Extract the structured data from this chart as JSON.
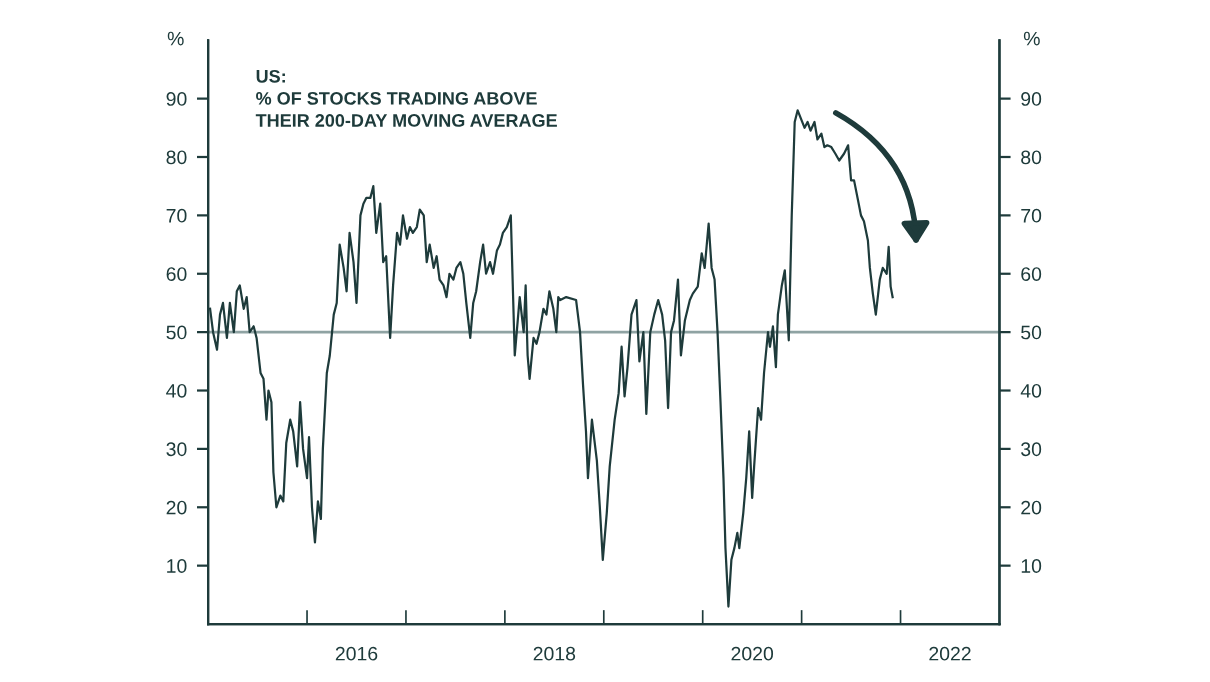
{
  "chart_data": {
    "type": "line",
    "title": "US:\n% OF STOCKS TRADING ABOVE\nTHEIR 200-DAY MOVING AVERAGE",
    "ylabel": "%",
    "y2label": "%",
    "xlim": [
      2015,
      2023
    ],
    "xticks": [
      {
        "value": 2016,
        "label": null
      },
      {
        "value": 2016.5,
        "label": "2016"
      },
      {
        "value": 2017,
        "label": null
      },
      {
        "value": 2018,
        "label": null
      },
      {
        "value": 2018.5,
        "label": "2018"
      },
      {
        "value": 2019,
        "label": null
      },
      {
        "value": 2020,
        "label": null
      },
      {
        "value": 2020.5,
        "label": "2020"
      },
      {
        "value": 2021,
        "label": null
      },
      {
        "value": 2022,
        "label": null
      },
      {
        "value": 2022.5,
        "label": "2022"
      }
    ],
    "ylim": [
      0,
      100
    ],
    "yticks": [
      10,
      20,
      30,
      40,
      50,
      60,
      70,
      80,
      90
    ],
    "y2lim": [
      0,
      100
    ],
    "y2ticks": [
      10,
      20,
      30,
      40,
      50,
      60,
      70,
      80,
      90
    ],
    "grid": false,
    "legend": false,
    "marker": "none",
    "line_style": "solid",
    "ref_lines": [
      {
        "axis": "y",
        "value": 50,
        "label": null,
        "color": "#8fa3a3",
        "line_style": "solid"
      }
    ],
    "series": [
      {
        "color": "#1e3b3b",
        "x": [
          2015.02,
          2015.05,
          2015.09,
          2015.12,
          2015.15,
          2015.19,
          2015.22,
          2015.26,
          2015.29,
          2015.32,
          2015.36,
          2015.39,
          2015.42,
          2015.46,
          2015.49,
          2015.53,
          2015.56,
          2015.59,
          2015.61,
          2015.64,
          2015.66,
          2015.69,
          2015.73,
          2015.76,
          2015.79,
          2015.83,
          2015.86,
          2015.9,
          2015.93,
          2015.96,
          2016.0,
          2016.02,
          2016.05,
          2016.08,
          2016.11,
          2016.14,
          2016.16,
          2016.2,
          2016.23,
          2016.27,
          2016.3,
          2016.33,
          2016.37,
          2016.4,
          2016.43,
          2016.47,
          2016.5,
          2016.54,
          2016.57,
          2016.6,
          2016.64,
          2016.67,
          2016.7,
          2016.74,
          2016.77,
          2016.8,
          2016.84,
          2016.87,
          2016.91,
          2016.94,
          2016.97,
          2017.01,
          2017.04,
          2017.07,
          2017.11,
          2017.14,
          2017.18,
          2017.21,
          2017.24,
          2017.28,
          2017.31,
          2017.34,
          2017.38,
          2017.41,
          2017.44,
          2017.48,
          2017.51,
          2017.55,
          2017.58,
          2017.61,
          2017.65,
          2017.68,
          2017.71,
          2017.75,
          2017.78,
          2017.81,
          2017.85,
          2017.88,
          2017.92,
          2017.95,
          2017.98,
          2018.02,
          2018.06,
          2018.1,
          2018.15,
          2018.19,
          2018.21,
          2018.23,
          2018.25,
          2018.29,
          2018.32,
          2018.35,
          2018.39,
          2018.42,
          2018.45,
          2018.49,
          2018.52,
          2018.54,
          2018.56,
          2018.62,
          2018.72,
          2018.76,
          2018.79,
          2018.82,
          2018.84,
          2018.88,
          2018.93,
          2018.96,
          2018.99,
          2019.03,
          2019.06,
          2019.11,
          2019.15,
          2019.18,
          2019.21,
          2019.24,
          2019.28,
          2019.33,
          2019.36,
          2019.4,
          2019.43,
          2019.47,
          2019.51,
          2019.55,
          2019.59,
          2019.62,
          2019.65,
          2019.68,
          2019.71,
          2019.75,
          2019.78,
          2019.82,
          2019.87,
          2019.9,
          2019.95,
          2019.99,
          2020.02,
          2020.06,
          2020.09,
          2020.12,
          2020.15,
          2020.18,
          2020.21,
          2020.23,
          2020.26,
          2020.29,
          2020.32,
          2020.35,
          2020.37,
          2020.41,
          2020.44,
          2020.47,
          2020.5,
          2020.52,
          2020.56,
          2020.59,
          2020.62,
          2020.66,
          2020.68,
          2020.71,
          2020.74,
          2020.76,
          2020.8,
          2020.83,
          2020.87,
          2020.9,
          2020.93,
          2020.96,
          2020.99,
          2021.03,
          2021.06,
          2021.09,
          2021.13,
          2021.16,
          2021.2,
          2021.23,
          2021.26,
          2021.3,
          2021.34,
          2021.38,
          2021.43,
          2021.47,
          2021.5,
          2021.53,
          2021.57,
          2021.6,
          2021.63,
          2021.67,
          2021.69,
          2021.72,
          2021.75,
          2021.79,
          2021.82,
          2021.86,
          2021.88,
          2021.9,
          2021.92
        ],
        "values": [
          54,
          50,
          47,
          53,
          55,
          49,
          55,
          50,
          57,
          58,
          54,
          56,
          50,
          51,
          49,
          43,
          42,
          35,
          40,
          38,
          26,
          20,
          22,
          21,
          31,
          35,
          33,
          27,
          38,
          30,
          25,
          32,
          20,
          14,
          21,
          18,
          30,
          43,
          46,
          53,
          55,
          65,
          61,
          57,
          67,
          62,
          55,
          70,
          72,
          73,
          73,
          75,
          67,
          72,
          62,
          63,
          49,
          58,
          67,
          65,
          70,
          66,
          68,
          67,
          68,
          71,
          70,
          62,
          65,
          61,
          63,
          59,
          58,
          56,
          60,
          59,
          61,
          62,
          60,
          55,
          49,
          55,
          57,
          62,
          65,
          60,
          62,
          60,
          64,
          65,
          67,
          68,
          70,
          46,
          56,
          50,
          58,
          46,
          42,
          49,
          48,
          50,
          54,
          53,
          57,
          54,
          50,
          56,
          55.5,
          56,
          55.5,
          50,
          41,
          33,
          25,
          35,
          28,
          20,
          11,
          19,
          27,
          35,
          39.5,
          47.5,
          39,
          44,
          53,
          55.5,
          45,
          50,
          36,
          50,
          53,
          55.5,
          53,
          48.6,
          37,
          50,
          52,
          59,
          46,
          52,
          55.5,
          56.6,
          57.8,
          63.5,
          61,
          68.6,
          61,
          59,
          50,
          38,
          25,
          13,
          3,
          11,
          13,
          15.6,
          13,
          19,
          25,
          33,
          21.6,
          27,
          37,
          35,
          43,
          50,
          47.5,
          51,
          44,
          53,
          58,
          60.6,
          48.6,
          70,
          86,
          88,
          86.7,
          85,
          86,
          84.5,
          86,
          83,
          84,
          81.7,
          82,
          81.7,
          80.6,
          79.4,
          80.6,
          82,
          76,
          76,
          72.6,
          70,
          69,
          65.7,
          61,
          56.6,
          53,
          59,
          61,
          60,
          64.6,
          57.8,
          56
        ]
      }
    ]
  }
}
